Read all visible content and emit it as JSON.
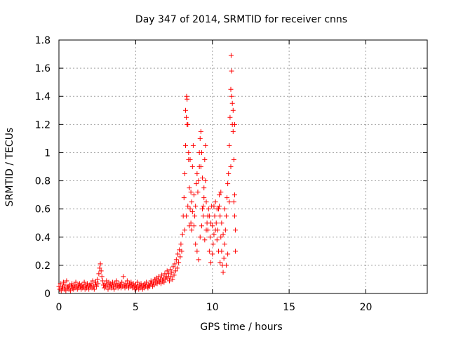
{
  "chart_data": {
    "type": "scatter",
    "title": "Day 347 of 2014, SRMTID for receiver cnns",
    "xlabel": "GPS time / hours",
    "ylabel": "SRMTID / TECUs",
    "xlim": [
      0,
      24
    ],
    "ylim": [
      0,
      1.8
    ],
    "xticks": [
      0,
      5,
      10,
      15,
      20
    ],
    "xtick_labels": [
      "0",
      "5",
      "10",
      "15",
      "20"
    ],
    "yticks": [
      0,
      0.2,
      0.4,
      0.6,
      0.8,
      1,
      1.2,
      1.4,
      1.6,
      1.8
    ],
    "ytick_labels": [
      "0",
      "0.2",
      "0.4",
      "0.6",
      "0.8",
      "1",
      "1.2",
      "1.4",
      "1.6",
      "1.8"
    ],
    "grid": true,
    "marker": "plus",
    "colors": {
      "points": "#ff0000",
      "grid": "#a0a0a0",
      "axis": "#000000"
    },
    "series": [
      {
        "points": [
          [
            0.0,
            0.05
          ],
          [
            0.05,
            0.03
          ],
          [
            0.1,
            0.07
          ],
          [
            0.15,
            0.02
          ],
          [
            0.2,
            0.05
          ],
          [
            0.25,
            0.04
          ],
          [
            0.3,
            0.08
          ],
          [
            0.35,
            0.03
          ],
          [
            0.4,
            0.06
          ],
          [
            0.45,
            0.02
          ],
          [
            0.5,
            0.09
          ],
          [
            0.55,
            0.04
          ],
          [
            0.6,
            0.05
          ],
          [
            0.65,
            0.03
          ],
          [
            0.7,
            0.06
          ],
          [
            0.75,
            0.02
          ],
          [
            0.8,
            0.05
          ],
          [
            0.85,
            0.07
          ],
          [
            0.9,
            0.04
          ],
          [
            0.95,
            0.03
          ],
          [
            1.0,
            0.06
          ],
          [
            1.05,
            0.04
          ],
          [
            1.1,
            0.08
          ],
          [
            1.15,
            0.05
          ],
          [
            1.2,
            0.03
          ],
          [
            1.25,
            0.06
          ],
          [
            1.3,
            0.04
          ],
          [
            1.35,
            0.07
          ],
          [
            1.4,
            0.05
          ],
          [
            1.45,
            0.03
          ],
          [
            1.5,
            0.06
          ],
          [
            1.55,
            0.04
          ],
          [
            1.6,
            0.05
          ],
          [
            1.65,
            0.08
          ],
          [
            1.7,
            0.03
          ],
          [
            1.75,
            0.06
          ],
          [
            1.8,
            0.04
          ],
          [
            1.85,
            0.07
          ],
          [
            1.9,
            0.05
          ],
          [
            1.95,
            0.03
          ],
          [
            2.0,
            0.06
          ],
          [
            2.05,
            0.05
          ],
          [
            2.1,
            0.07
          ],
          [
            2.15,
            0.04
          ],
          [
            2.2,
            0.09
          ],
          [
            2.25,
            0.05
          ],
          [
            2.3,
            0.03
          ],
          [
            2.35,
            0.06
          ],
          [
            2.4,
            0.08
          ],
          [
            2.45,
            0.05
          ],
          [
            2.5,
            0.1
          ],
          [
            2.55,
            0.07
          ],
          [
            2.6,
            0.14
          ],
          [
            2.65,
            0.18
          ],
          [
            2.7,
            0.21
          ],
          [
            2.75,
            0.16
          ],
          [
            2.8,
            0.12
          ],
          [
            2.85,
            0.09
          ],
          [
            2.9,
            0.06
          ],
          [
            2.95,
            0.04
          ],
          [
            3.0,
            0.07
          ],
          [
            3.05,
            0.05
          ],
          [
            3.1,
            0.09
          ],
          [
            3.15,
            0.06
          ],
          [
            3.2,
            0.03
          ],
          [
            3.25,
            0.08
          ],
          [
            3.3,
            0.05
          ],
          [
            3.35,
            0.07
          ],
          [
            3.4,
            0.04
          ],
          [
            3.45,
            0.06
          ],
          [
            3.5,
            0.08
          ],
          [
            3.55,
            0.05
          ],
          [
            3.6,
            0.03
          ],
          [
            3.65,
            0.07
          ],
          [
            3.7,
            0.05
          ],
          [
            3.75,
            0.09
          ],
          [
            3.8,
            0.06
          ],
          [
            3.85,
            0.04
          ],
          [
            3.9,
            0.07
          ],
          [
            3.95,
            0.05
          ],
          [
            4.0,
            0.06
          ],
          [
            4.05,
            0.04
          ],
          [
            4.1,
            0.08
          ],
          [
            4.15,
            0.05
          ],
          [
            4.2,
            0.12
          ],
          [
            4.25,
            0.06
          ],
          [
            4.3,
            0.04
          ],
          [
            4.35,
            0.07
          ],
          [
            4.4,
            0.05
          ],
          [
            4.45,
            0.09
          ],
          [
            4.5,
            0.06
          ],
          [
            4.55,
            0.04
          ],
          [
            4.6,
            0.07
          ],
          [
            4.65,
            0.05
          ],
          [
            4.7,
            0.08
          ],
          [
            4.75,
            0.06
          ],
          [
            4.8,
            0.04
          ],
          [
            4.85,
            0.07
          ],
          [
            4.9,
            0.05
          ],
          [
            4.95,
            0.03
          ],
          [
            5.0,
            0.06
          ],
          [
            5.05,
            0.04
          ],
          [
            5.1,
            0.08
          ],
          [
            5.15,
            0.05
          ],
          [
            5.2,
            0.03
          ],
          [
            5.25,
            0.06
          ],
          [
            5.3,
            0.04
          ],
          [
            5.35,
            0.07
          ],
          [
            5.4,
            0.05
          ],
          [
            5.45,
            0.03
          ],
          [
            5.5,
            0.06
          ],
          [
            5.55,
            0.04
          ],
          [
            5.6,
            0.07
          ],
          [
            5.65,
            0.05
          ],
          [
            5.7,
            0.08
          ],
          [
            5.75,
            0.05
          ],
          [
            5.8,
            0.04
          ],
          [
            5.85,
            0.06
          ],
          [
            5.9,
            0.05
          ],
          [
            5.95,
            0.07
          ],
          [
            6.0,
            0.09
          ],
          [
            6.05,
            0.07
          ],
          [
            6.1,
            0.05
          ],
          [
            6.15,
            0.08
          ],
          [
            6.2,
            0.06
          ],
          [
            6.25,
            0.1
          ],
          [
            6.3,
            0.08
          ],
          [
            6.35,
            0.11
          ],
          [
            6.4,
            0.07
          ],
          [
            6.45,
            0.09
          ],
          [
            6.5,
            0.12
          ],
          [
            6.55,
            0.08
          ],
          [
            6.6,
            0.1
          ],
          [
            6.65,
            0.07
          ],
          [
            6.7,
            0.13
          ],
          [
            6.75,
            0.09
          ],
          [
            6.8,
            0.11
          ],
          [
            6.85,
            0.08
          ],
          [
            6.9,
            0.14
          ],
          [
            6.95,
            0.1
          ],
          [
            7.0,
            0.12
          ],
          [
            7.05,
            0.16
          ],
          [
            7.1,
            0.11
          ],
          [
            7.15,
            0.14
          ],
          [
            7.2,
            0.09
          ],
          [
            7.25,
            0.17
          ],
          [
            7.3,
            0.12
          ],
          [
            7.35,
            0.15
          ],
          [
            7.4,
            0.1
          ],
          [
            7.45,
            0.19
          ],
          [
            7.5,
            0.13
          ],
          [
            7.55,
            0.21
          ],
          [
            7.6,
            0.16
          ],
          [
            7.65,
            0.24
          ],
          [
            7.7,
            0.18
          ],
          [
            7.75,
            0.28
          ],
          [
            7.8,
            0.22
          ],
          [
            7.85,
            0.31
          ],
          [
            7.9,
            0.26
          ],
          [
            7.95,
            0.35
          ],
          [
            8.0,
            0.3
          ],
          [
            8.05,
            0.42
          ],
          [
            8.1,
            0.55
          ],
          [
            8.15,
            0.68
          ],
          [
            8.2,
            0.85
          ],
          [
            8.25,
            1.05
          ],
          [
            8.3,
            1.25
          ],
          [
            8.32,
            1.4
          ],
          [
            8.35,
            1.38
          ],
          [
            8.4,
            1.2
          ],
          [
            8.45,
            0.95
          ],
          [
            8.5,
            0.75
          ],
          [
            8.55,
            0.6
          ],
          [
            8.6,
            0.5
          ],
          [
            8.65,
            0.45
          ],
          [
            8.7,
            0.9
          ],
          [
            8.75,
            1.05
          ],
          [
            8.8,
            0.7
          ],
          [
            8.85,
            0.55
          ],
          [
            8.9,
            0.62
          ],
          [
            8.95,
            0.78
          ],
          [
            9.0,
            0.85
          ],
          [
            9.05,
            0.72
          ],
          [
            9.1,
            0.8
          ],
          [
            9.15,
            0.9
          ],
          [
            9.2,
            1.1
          ],
          [
            9.25,
            1.15
          ],
          [
            9.3,
            1.0
          ],
          [
            9.35,
            0.6
          ],
          [
            9.4,
            0.55
          ],
          [
            9.45,
            0.75
          ],
          [
            9.5,
            0.95
          ],
          [
            9.55,
            1.05
          ],
          [
            9.6,
            0.65
          ],
          [
            9.65,
            0.5
          ],
          [
            9.7,
            0.45
          ],
          [
            9.75,
            0.6
          ],
          [
            9.8,
            0.55
          ],
          [
            9.85,
            0.4
          ],
          [
            9.9,
            0.5
          ],
          [
            9.95,
            0.62
          ],
          [
            10.0,
            0.48
          ],
          [
            10.05,
            0.35
          ],
          [
            10.1,
            0.42
          ],
          [
            10.15,
            0.55
          ],
          [
            10.2,
            0.65
          ],
          [
            10.25,
            0.5
          ],
          [
            10.3,
            0.38
          ],
          [
            10.35,
            0.45
          ],
          [
            10.4,
            0.6
          ],
          [
            10.45,
            0.7
          ],
          [
            10.5,
            0.55
          ],
          [
            10.55,
            0.4
          ],
          [
            10.6,
            0.3
          ],
          [
            10.65,
            0.2
          ],
          [
            10.7,
            0.15
          ],
          [
            10.75,
            0.25
          ],
          [
            10.8,
            0.35
          ],
          [
            10.85,
            0.45
          ],
          [
            10.9,
            0.55
          ],
          [
            10.95,
            0.68
          ],
          [
            11.0,
            0.78
          ],
          [
            11.05,
            0.85
          ],
          [
            11.1,
            1.05
          ],
          [
            11.15,
            1.25
          ],
          [
            11.2,
            1.45
          ],
          [
            11.22,
            1.69
          ],
          [
            11.25,
            1.58
          ],
          [
            11.3,
            1.35
          ],
          [
            11.35,
            1.15
          ],
          [
            11.4,
            0.95
          ],
          [
            11.45,
            0.7
          ],
          [
            11.5,
            0.45
          ],
          [
            8.2,
            0.45
          ],
          [
            8.3,
            0.55
          ],
          [
            8.4,
            0.62
          ],
          [
            8.5,
            0.48
          ],
          [
            8.6,
            0.72
          ],
          [
            8.7,
            0.58
          ],
          [
            8.8,
            0.48
          ],
          [
            8.9,
            0.35
          ],
          [
            9.0,
            0.3
          ],
          [
            9.1,
            0.24
          ],
          [
            9.2,
            0.4
          ],
          [
            9.3,
            0.48
          ],
          [
            9.4,
            0.62
          ],
          [
            9.5,
            0.38
          ],
          [
            9.6,
            0.45
          ],
          [
            9.7,
            0.55
          ],
          [
            9.8,
            0.3
          ],
          [
            9.9,
            0.22
          ],
          [
            10.0,
            0.28
          ],
          [
            10.1,
            0.62
          ],
          [
            10.2,
            0.45
          ],
          [
            10.3,
            0.6
          ],
          [
            10.4,
            0.3
          ],
          [
            10.5,
            0.22
          ],
          [
            10.6,
            0.5
          ],
          [
            10.7,
            0.42
          ],
          [
            10.8,
            0.6
          ],
          [
            10.9,
            0.2
          ],
          [
            11.0,
            0.28
          ],
          [
            11.1,
            0.65
          ],
          [
            11.2,
            0.9
          ],
          [
            11.3,
            1.2
          ],
          [
            11.4,
            0.65
          ],
          [
            11.45,
            0.55
          ],
          [
            11.5,
            0.3
          ],
          [
            8.25,
            1.3
          ],
          [
            8.35,
            1.2
          ],
          [
            8.45,
            1.0
          ],
          [
            8.55,
            0.95
          ],
          [
            8.65,
            0.65
          ],
          [
            9.15,
            1.0
          ],
          [
            9.25,
            0.9
          ],
          [
            9.35,
            0.82
          ],
          [
            9.45,
            0.68
          ],
          [
            9.55,
            0.8
          ],
          [
            10.45,
            0.62
          ],
          [
            10.55,
            0.72
          ],
          [
            11.25,
            1.4
          ],
          [
            11.35,
            1.3
          ],
          [
            11.45,
            1.2
          ]
        ]
      }
    ]
  }
}
